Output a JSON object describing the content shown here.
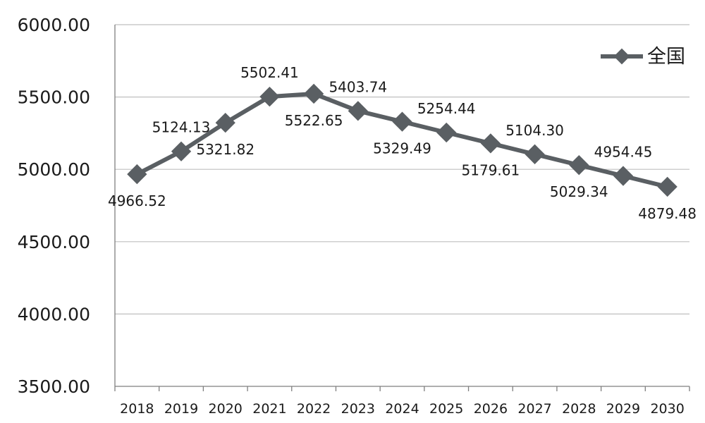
{
  "chart_data": {
    "type": "line",
    "categories": [
      "2018",
      "2019",
      "2020",
      "2021",
      "2022",
      "2023",
      "2024",
      "2025",
      "2026",
      "2027",
      "2028",
      "2029",
      "2030"
    ],
    "series": [
      {
        "name": "全国",
        "values": [
          4966.52,
          5124.13,
          5321.82,
          5502.41,
          5522.65,
          5403.74,
          5329.49,
          5254.44,
          5179.61,
          5104.3,
          5029.34,
          4954.45,
          4879.48
        ],
        "labels": [
          "4966.52",
          "5124.13",
          "5321.82",
          "5502.41",
          "5522.65",
          "5403.74",
          "5329.49",
          "5254.44",
          "5179.61",
          "5104.30",
          "5029.34",
          "4954.45",
          "4879.48"
        ]
      }
    ],
    "y_ticks": [
      "3500.00",
      "4000.00",
      "4500.00",
      "5000.00",
      "5500.00",
      "6000.00"
    ],
    "ylim": [
      3500,
      6000
    ],
    "grid": true,
    "legend_position": "top-right",
    "colors": {
      "line": "#5a5f63",
      "grid": "#bfbfbf",
      "axis": "#7f7f7f",
      "text": "#1a1a1a"
    }
  }
}
